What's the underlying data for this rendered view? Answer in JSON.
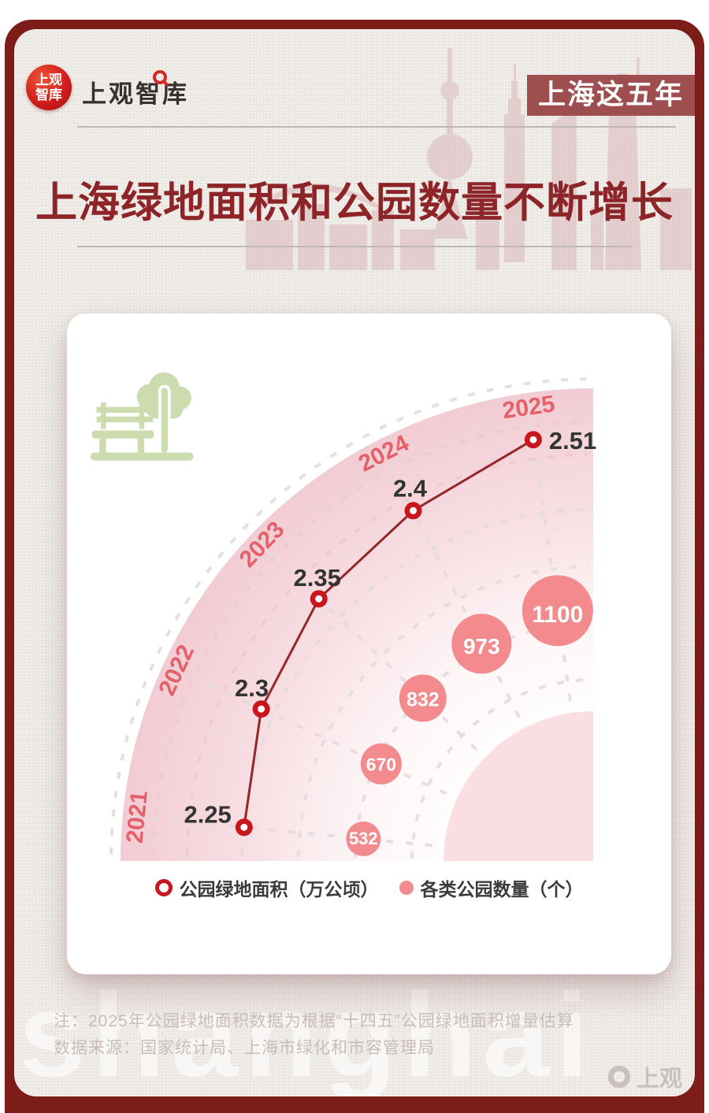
{
  "page": {
    "logo": {
      "seal_line1": "上观",
      "seal_line2": "智库",
      "wordmark": "上观智库"
    },
    "badge": "上海这五年",
    "title": "上海绿地面积和公园数量不断增长",
    "watermark": "shanghai",
    "corner_logo": "上观",
    "notes": {
      "line1": "注：2025年公园绿地面积数据为根据“十四五”公园绿地面积增量估算",
      "line2": "数据来源：国家统计局、上海市绿化和市容管理局"
    },
    "colors": {
      "frame": "#7d1d1a",
      "badge_bg": "#9f4e50",
      "title": "#8d2427",
      "background": "#ece9e5"
    }
  },
  "chart_data": {
    "type": "polar-fan line + bubble",
    "categories": [
      "2021",
      "2022",
      "2023",
      "2024",
      "2025"
    ],
    "series": [
      {
        "name": "公园绿地面积（万公顷）",
        "type": "line",
        "values": [
          2.25,
          2.3,
          2.35,
          2.4,
          2.51
        ]
      },
      {
        "name": "各类公园数量（个）",
        "type": "bubble",
        "values": [
          532,
          670,
          832,
          973,
          1100
        ]
      }
    ],
    "legend": [
      "公园绿地面积（万公顷）",
      "各类公园数量（个）"
    ],
    "angular_axis": "years 2021 (west) → 2025 (north) across a quarter circle, dashed polar grid",
    "colors": {
      "line": "#93272a",
      "marker": "#c8161c",
      "marker_hole": "#ffffff",
      "bubble": "#f28a8e",
      "bubble_text": "#ffffff",
      "year_label": "#e6606a",
      "value_label": "#333333",
      "grid_gray": "#e2dbde",
      "grid_pink": "#f0c9d0",
      "inner_disc": "#fbdee1",
      "fan_outer": "#f1ccd3",
      "icon_green": "#ccdcae"
    }
  }
}
